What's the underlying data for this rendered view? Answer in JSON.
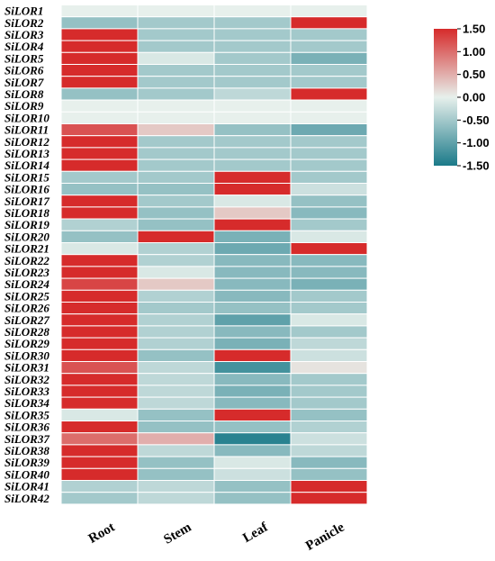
{
  "chart_data": {
    "type": "heatmap",
    "rows": [
      "SiLOR1",
      "SiLOR2",
      "SiLOR3",
      "SiLOR4",
      "SiLOR5",
      "SiLOR6",
      "SiLOR7",
      "SiLOR8",
      "SiLOR9",
      "SiLOR10",
      "SiLOR11",
      "SiLOR12",
      "SiLOR13",
      "SiLOR14",
      "SiLOR15",
      "SiLOR16",
      "SiLOR17",
      "SiLOR18",
      "SiLOR19",
      "SiLOR20",
      "SiLOR21",
      "SiLOR22",
      "SiLOR23",
      "SiLOR24",
      "SiLOR25",
      "SiLOR26",
      "SiLOR27",
      "SiLOR28",
      "SiLOR29",
      "SiLOR30",
      "SiLOR31",
      "SiLOR32",
      "SiLOR33",
      "SiLOR34",
      "SiLOR35",
      "SiLOR36",
      "SiLOR37",
      "SiLOR38",
      "SiLOR39",
      "SiLOR40",
      "SiLOR41",
      "SiLOR42"
    ],
    "columns": [
      "Root",
      "Stem",
      "Leaf",
      "Panicle"
    ],
    "values": [
      [
        0.0,
        0.0,
        0.0,
        0.0
      ],
      [
        -0.6,
        -0.5,
        -0.5,
        1.5
      ],
      [
        1.5,
        -0.5,
        -0.5,
        -0.5
      ],
      [
        1.5,
        -0.5,
        -0.5,
        -0.5
      ],
      [
        1.5,
        -0.1,
        -0.5,
        -0.8
      ],
      [
        1.5,
        -0.5,
        -0.5,
        -0.5
      ],
      [
        1.5,
        -0.5,
        -0.5,
        -0.5
      ],
      [
        -0.6,
        -0.5,
        -0.3,
        1.5
      ],
      [
        0.0,
        0.0,
        0.0,
        0.0
      ],
      [
        0.0,
        0.0,
        0.0,
        0.0
      ],
      [
        1.2,
        0.3,
        -0.6,
        -0.9
      ],
      [
        1.5,
        -0.5,
        -0.5,
        -0.5
      ],
      [
        1.5,
        -0.5,
        -0.5,
        -0.5
      ],
      [
        1.5,
        -0.5,
        -0.5,
        -0.5
      ],
      [
        -0.5,
        -0.5,
        1.5,
        -0.5
      ],
      [
        -0.6,
        -0.6,
        1.5,
        -0.2
      ],
      [
        1.5,
        -0.5,
        -0.1,
        -0.6
      ],
      [
        1.5,
        -0.6,
        0.3,
        -0.7
      ],
      [
        -0.4,
        -0.6,
        1.5,
        -0.5
      ],
      [
        -0.6,
        1.5,
        -0.8,
        -0.1
      ],
      [
        -0.1,
        -0.4,
        -0.9,
        1.5
      ],
      [
        1.5,
        -0.4,
        -0.7,
        -0.7
      ],
      [
        1.5,
        -0.1,
        -0.7,
        -0.7
      ],
      [
        1.3,
        0.3,
        -0.7,
        -0.8
      ],
      [
        1.5,
        -0.4,
        -0.7,
        -0.5
      ],
      [
        1.5,
        -0.5,
        -0.6,
        -0.5
      ],
      [
        1.5,
        -0.4,
        -1.0,
        -0.1
      ],
      [
        1.5,
        -0.4,
        -0.7,
        -0.5
      ],
      [
        1.5,
        -0.4,
        -0.8,
        -0.3
      ],
      [
        1.5,
        -0.6,
        1.5,
        -0.2
      ],
      [
        1.2,
        -0.3,
        -1.2,
        0.1
      ],
      [
        1.5,
        -0.3,
        -0.7,
        -0.5
      ],
      [
        1.5,
        -0.3,
        -0.8,
        -0.5
      ],
      [
        1.5,
        -0.3,
        -0.7,
        -0.5
      ],
      [
        -0.1,
        -0.6,
        1.5,
        -0.6
      ],
      [
        1.5,
        -0.6,
        -0.6,
        -0.4
      ],
      [
        1.0,
        0.5,
        -1.4,
        -0.2
      ],
      [
        1.5,
        -0.3,
        -0.7,
        -0.3
      ],
      [
        1.5,
        -0.6,
        -0.1,
        -0.7
      ],
      [
        1.5,
        -0.6,
        -0.2,
        -0.6
      ],
      [
        -0.4,
        -0.3,
        -0.6,
        1.5
      ],
      [
        -0.5,
        -0.3,
        -0.6,
        1.5
      ]
    ],
    "colorbar": {
      "min": -1.5,
      "max": 1.5,
      "ticks": [
        "1.50",
        "1.00",
        "0.50",
        "0.00",
        "-0.50",
        "-1.00",
        "-1.50"
      ]
    },
    "colors": {
      "low": "#1b7a89",
      "mid": "#e7f0ec",
      "high": "#d62b2b"
    },
    "title": "",
    "xlabel": "",
    "ylabel": ""
  }
}
